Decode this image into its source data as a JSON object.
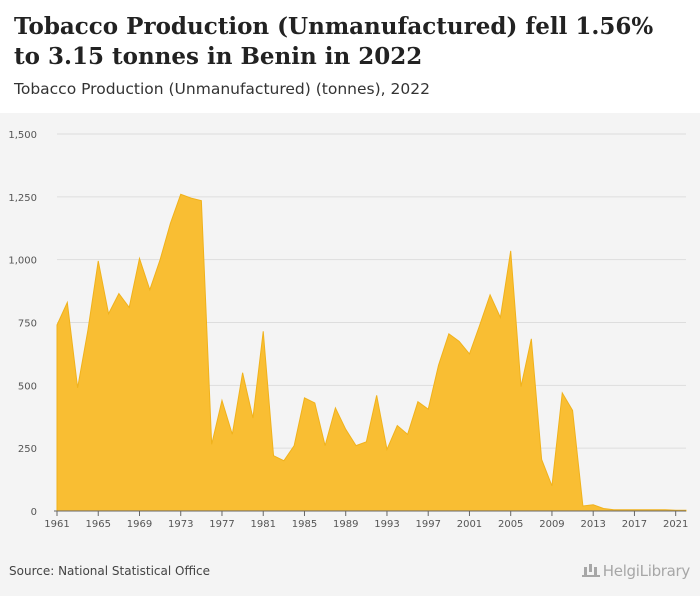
{
  "header": {
    "title": "Tobacco Production (Unmanufactured) fell 1.56% to 3.15 tonnes in Benin in 2022",
    "subtitle": "Tobacco Production (Unmanufactured) (tonnes), 2022"
  },
  "footer": {
    "source": "Source: National Statistical Office",
    "logo_text": "HelgiLibrary"
  },
  "colors": {
    "area_fill": "#f9be33",
    "area_stroke": "#f0b21c",
    "grid": "#dddddd",
    "panel_bg": "#f4f4f4"
  },
  "chart_data": {
    "type": "area",
    "xlabel": "",
    "ylabel": "",
    "ylim": [
      0,
      1500
    ],
    "xlim": [
      1961,
      2022
    ],
    "y_ticks": [
      0,
      250,
      500,
      750,
      1000,
      1250,
      1500
    ],
    "y_tick_labels": [
      "0",
      "250",
      "500",
      "750",
      "1,000",
      "1,250",
      "1,500"
    ],
    "x_ticks": [
      1961,
      1965,
      1969,
      1973,
      1977,
      1981,
      1985,
      1989,
      1993,
      1997,
      2001,
      2005,
      2009,
      2013,
      2017,
      2021
    ],
    "grid": true,
    "x": [
      1961,
      1962,
      1963,
      1964,
      1965,
      1966,
      1967,
      1968,
      1969,
      1970,
      1971,
      1972,
      1973,
      1974,
      1975,
      1976,
      1977,
      1978,
      1979,
      1980,
      1981,
      1982,
      1983,
      1984,
      1985,
      1986,
      1987,
      1988,
      1989,
      1990,
      1991,
      1992,
      1993,
      1994,
      1995,
      1996,
      1997,
      1998,
      1999,
      2000,
      2001,
      2002,
      2003,
      2004,
      2005,
      2006,
      2007,
      2008,
      2009,
      2010,
      2011,
      2012,
      2013,
      2014,
      2015,
      2016,
      2017,
      2018,
      2019,
      2020,
      2021,
      2022
    ],
    "series": [
      {
        "values": [
          740,
          830,
          490,
          720,
          995,
          785,
          865,
          810,
          1005,
          880,
          1000,
          1145,
          1260,
          1245,
          1235,
          265,
          440,
          305,
          550,
          370,
          715,
          220,
          200,
          260,
          450,
          430,
          260,
          410,
          325,
          260,
          275,
          460,
          245,
          340,
          305,
          435,
          405,
          580,
          705,
          675,
          625,
          740,
          860,
          770,
          1035,
          495,
          685,
          205,
          100,
          470,
          400,
          20,
          25,
          10,
          5,
          5,
          5,
          5,
          5,
          5,
          3.2,
          3.15
        ]
      }
    ]
  }
}
